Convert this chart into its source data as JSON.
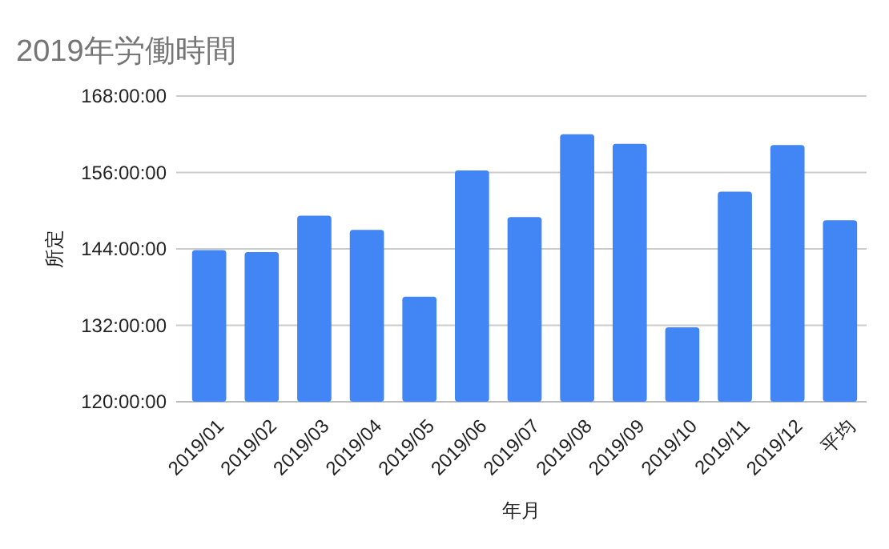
{
  "chart_data": {
    "type": "bar",
    "title": "2019年労働時間",
    "xlabel": "年月",
    "ylabel": "所定",
    "categories": [
      "2019/01",
      "2019/02",
      "2019/03",
      "2019/04",
      "2019/05",
      "2019/06",
      "2019/07",
      "2019/08",
      "2019/09",
      "2019/10",
      "2019/11",
      "2019/12",
      "平均"
    ],
    "values": [
      143.8,
      143.5,
      149.2,
      147,
      136.5,
      156.3,
      149,
      162,
      160.5,
      131.7,
      153,
      160.3,
      148.5
    ],
    "color": "#4285f4",
    "ylim": [
      120,
      168
    ],
    "yticks": [
      {
        "value": 120,
        "label": "120:00:00"
      },
      {
        "value": 132,
        "label": "132:00:00"
      },
      {
        "value": 144,
        "label": "144:00:00"
      },
      {
        "value": 156,
        "label": "156:00:00"
      },
      {
        "value": 168,
        "label": "168:00:00"
      }
    ],
    "grid": "y"
  }
}
